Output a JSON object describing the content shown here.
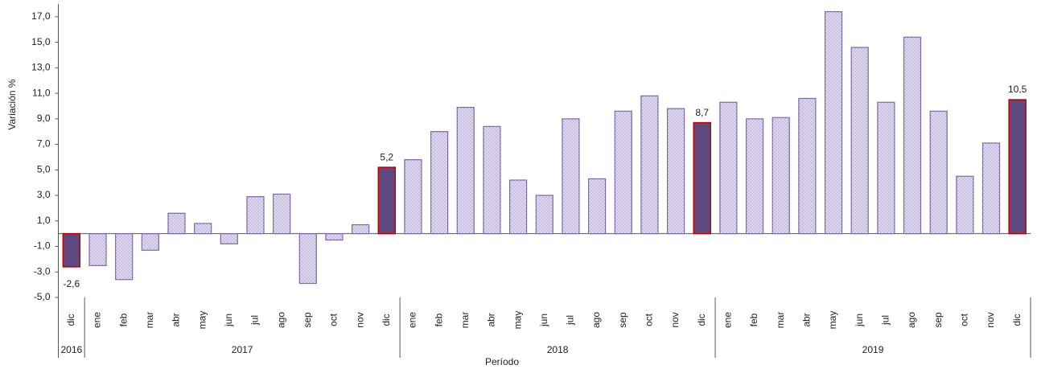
{
  "chart_data": {
    "type": "bar",
    "y_label": "Variación %",
    "x_label": "Período",
    "categories": [
      "dic",
      "ene",
      "feb",
      "mar",
      "abr",
      "may",
      "jun",
      "jul",
      "ago",
      "sep",
      "oct",
      "nov",
      "dic",
      "ene",
      "feb",
      "mar",
      "abr",
      "may",
      "jun",
      "jul",
      "ago",
      "sep",
      "oct",
      "nov",
      "dic",
      "ene",
      "feb",
      "mar",
      "abr",
      "may",
      "jun",
      "jul",
      "ago",
      "sep",
      "oct",
      "nov",
      "dic"
    ],
    "values": [
      -2.6,
      -2.5,
      -3.6,
      -1.3,
      1.6,
      0.8,
      -0.8,
      2.9,
      3.1,
      -3.9,
      -0.5,
      0.7,
      5.2,
      5.8,
      8.0,
      9.9,
      8.4,
      4.2,
      3.0,
      9.0,
      4.3,
      9.6,
      10.8,
      9.8,
      8.7,
      10.3,
      9.0,
      9.1,
      10.6,
      17.4,
      14.6,
      10.3,
      15.4,
      9.6,
      4.5,
      7.1,
      10.5
    ],
    "value_labels": [
      "-2,6",
      null,
      null,
      null,
      null,
      null,
      null,
      null,
      null,
      null,
      null,
      null,
      "5,2",
      null,
      null,
      null,
      null,
      null,
      null,
      null,
      null,
      null,
      null,
      null,
      "8,7",
      null,
      null,
      null,
      null,
      null,
      null,
      null,
      null,
      null,
      null,
      null,
      "10,5"
    ],
    "groups": [
      {
        "label": "2016",
        "count": 1
      },
      {
        "label": "2017",
        "count": 12
      },
      {
        "label": "2018",
        "count": 12
      },
      {
        "label": "2019",
        "count": 12
      }
    ],
    "color": "#c9bfe3",
    "edge_color": "#7d68a8",
    "highlight_color": "#5e4a80",
    "highlight_edge_color": "#c00000",
    "ylim": [
      -5,
      18
    ],
    "yticks": [
      {
        "value": -5,
        "label": "-5,0"
      },
      {
        "value": -3,
        "label": "-3,0"
      },
      {
        "value": -1,
        "label": "-1,0"
      },
      {
        "value": 1,
        "label": "1,0"
      },
      {
        "value": 3,
        "label": "3,0"
      },
      {
        "value": 5,
        "label": "5,0"
      },
      {
        "value": 7,
        "label": "7,0"
      },
      {
        "value": 9,
        "label": "9,0"
      },
      {
        "value": 11,
        "label": "11,0"
      },
      {
        "value": 13,
        "label": "13,0"
      },
      {
        "value": 15,
        "label": "15,0"
      },
      {
        "value": 17,
        "label": "17,0"
      }
    ],
    "grid": false
  }
}
